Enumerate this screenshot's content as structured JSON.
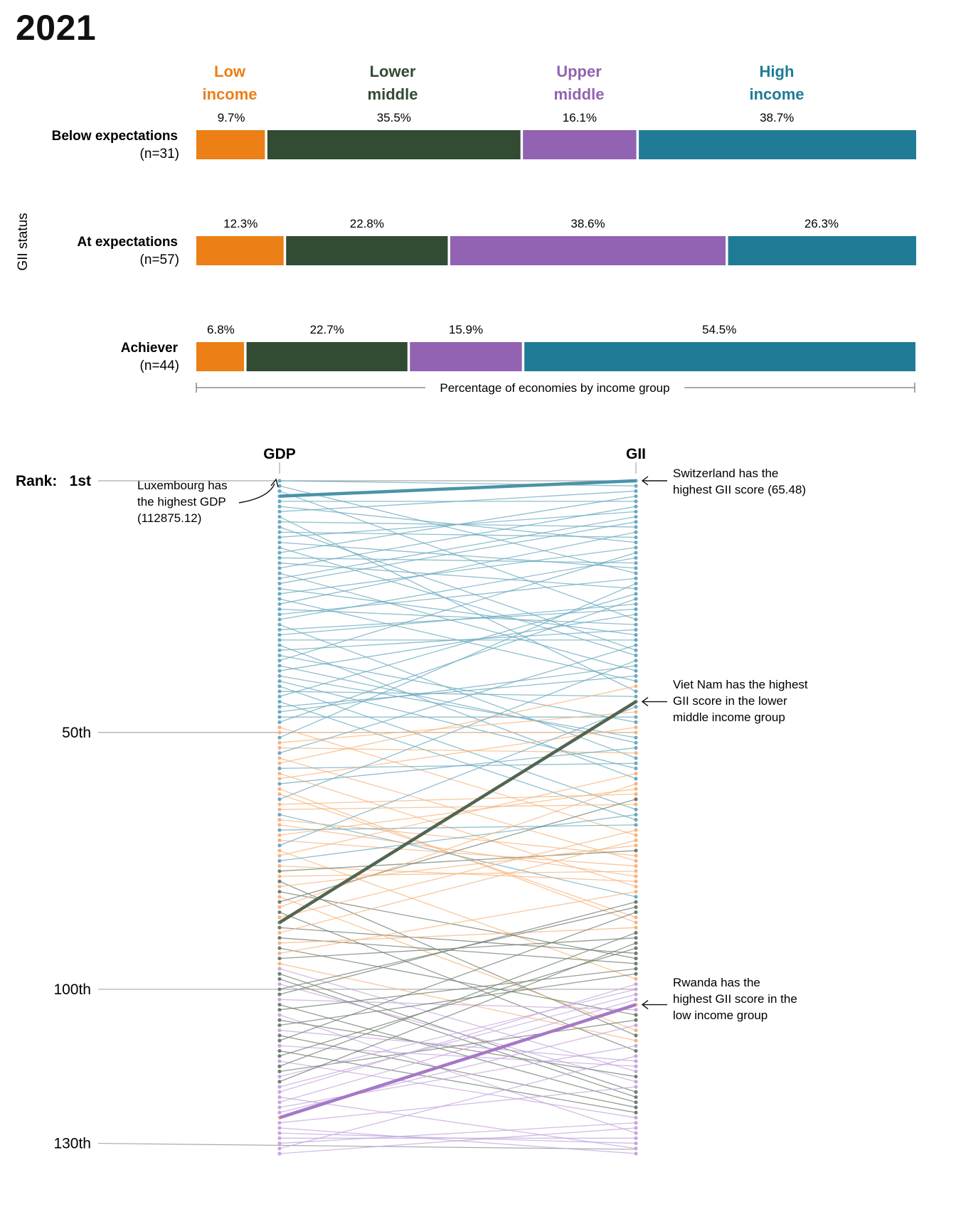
{
  "title": "2021",
  "colors": {
    "low": "#ec7f16",
    "lower_middle": "#324b33",
    "upper_middle": "#9262b3",
    "high": "#1f7b96",
    "slope_low": "#f5b47c",
    "slope_lower_middle": "#6f7e70",
    "slope_upper_middle": "#c6a6dc",
    "slope_high": "#6aa9bf"
  },
  "chart_data": [
    {
      "type": "bar",
      "orientation": "horizontal",
      "stacked": true,
      "title": "",
      "ylabel": "GII status",
      "xlabel": "Percentage of economies by income group",
      "legend_placement": "top",
      "income_groups": [
        {
          "key": "low",
          "label_line1": "Low",
          "label_line2": "income"
        },
        {
          "key": "lower_middle",
          "label_line1": "Lower",
          "label_line2": "middle"
        },
        {
          "key": "upper_middle",
          "label_line1": "Upper",
          "label_line2": "middle"
        },
        {
          "key": "high",
          "label_line1": "High",
          "label_line2": "income"
        }
      ],
      "rows": [
        {
          "label": "Below expectations",
          "n_label": "(n=31)",
          "values": [
            9.7,
            35.5,
            16.1,
            38.7
          ],
          "value_labels": [
            "9.7%",
            "35.5%",
            "16.1%",
            "38.7%"
          ]
        },
        {
          "label": "At expectations",
          "n_label": "(n=57)",
          "values": [
            12.3,
            22.8,
            38.6,
            26.3
          ],
          "value_labels": [
            "12.3%",
            "22.8%",
            "38.6%",
            "26.3%"
          ]
        },
        {
          "label": "Achiever",
          "n_label": "(n=44)",
          "values": [
            6.8,
            22.7,
            15.9,
            54.5
          ],
          "value_labels": [
            "6.8%",
            "22.7%",
            "15.9%",
            "54.5%"
          ]
        }
      ]
    },
    {
      "type": "slope",
      "axes": [
        "GDP",
        "GII"
      ],
      "rank_range": [
        1,
        132
      ],
      "rank_prefix": "Rank:",
      "rank_ticks": [
        {
          "rank": 1,
          "label": "1st"
        },
        {
          "rank": 50,
          "label": "50th"
        },
        {
          "rank": 100,
          "label": "100th"
        },
        {
          "rank": 130,
          "label": "130th"
        }
      ],
      "group_order": [
        "high",
        "upper_middle",
        "lower_middle",
        "low"
      ],
      "highlights": [
        {
          "group": "high",
          "gdp_rank": 4,
          "gii_rank": 1
        },
        {
          "group": "lower_middle",
          "gdp_rank": 87,
          "gii_rank": 44
        },
        {
          "group": "low",
          "gdp_rank": 125,
          "gii_rank": 103
        }
      ],
      "annotations": {
        "gdp_top": [
          "Luxembourg has",
          "the highest GDP",
          "(112875.12)"
        ],
        "gii_top": [
          "Switzerland has the",
          "highest GII score (65.48)"
        ],
        "gii_lower_middle": [
          "Viet Nam has the highest",
          "GII score in the lower",
          "middle income group"
        ],
        "gii_low": [
          "Rwanda has the",
          "highest GII score in the",
          "low income group"
        ]
      }
    }
  ]
}
